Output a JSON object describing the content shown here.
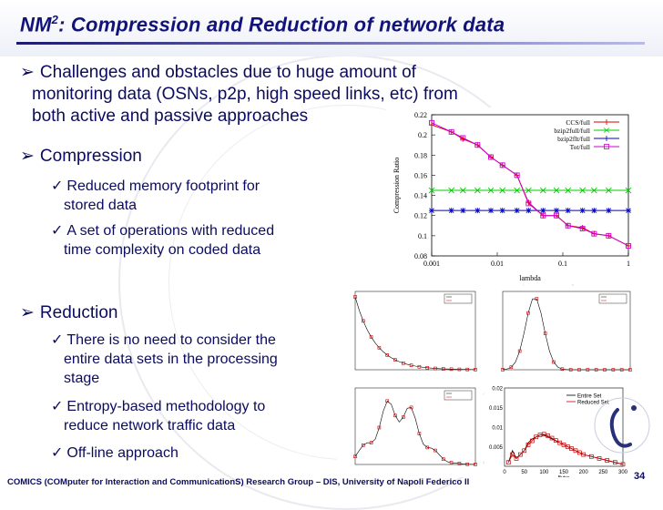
{
  "title": {
    "main": "NM",
    "sup": "2",
    "rest": ": Compression and Reduction of network data"
  },
  "challenges": {
    "line1": "Challenges and obstacles due to huge amount of",
    "line2": "monitoring data (OSNs, p2p, high speed links, etc) from",
    "line3": "both active and passive approaches"
  },
  "compression": {
    "heading": "Compression",
    "item1_line1": "Reduced memory footprint for",
    "item1_line2": "stored data",
    "item2_line1": "A set of operations with reduced",
    "item2_line2": "time complexity on coded data"
  },
  "reduction": {
    "heading": "Reduction",
    "item1_line1": "There is no need to consider the",
    "item1_line2": "entire data sets in the processing",
    "item1_line3": "stage",
    "item2_line1": "Entropy-based methodology to",
    "item2_line2": "reduce network traffic data",
    "item3": "Off-line approach"
  },
  "footer": "COMICS (COMputer for Interaction and CommunicationS) Research Group – DIS, University of Napoli Federico II",
  "page_number": "34",
  "colors": {
    "title": "#12137a",
    "text": "#0b0b60",
    "ccs": "#d40000",
    "bzip2": "#00cc00",
    "bzip2flt": "#0000cc",
    "tot": "#cc00cc",
    "entire": "#000000",
    "reduced": "#cc0000"
  },
  "chart_data": [
    {
      "type": "line",
      "xlabel": "lambda",
      "ylabel": "Compression Ratio",
      "x_scale": "log",
      "xlim": [
        0.001,
        1
      ],
      "ylim": [
        0.08,
        0.22
      ],
      "x_ticks": [
        "0.001",
        "0.01",
        "0.1",
        "1"
      ],
      "y_ticks": [
        "0.08",
        "0.1",
        "0.12",
        "0.14",
        "0.16",
        "0.18",
        "0.2",
        "0.22"
      ],
      "legend_position": "top-right",
      "x": [
        0.001,
        0.002,
        0.003,
        0.005,
        0.008,
        0.012,
        0.02,
        0.03,
        0.05,
        0.08,
        0.12,
        0.2,
        0.3,
        0.5,
        1
      ],
      "series": [
        {
          "name": "CCS/full",
          "values": [
            0.21,
            0.203,
            0.196,
            0.19,
            0.178,
            0.17,
            0.16,
            0.133,
            0.12,
            0.12,
            0.11,
            0.108,
            0.102,
            0.1,
            0.09
          ]
        },
        {
          "name": "bzip2full/full",
          "values": [
            0.145,
            0.145,
            0.145,
            0.145,
            0.145,
            0.145,
            0.145,
            0.145,
            0.145,
            0.145,
            0.145,
            0.145,
            0.145,
            0.145,
            0.145
          ]
        },
        {
          "name": "bzip2flt/full",
          "values": [
            0.125,
            0.125,
            0.125,
            0.125,
            0.125,
            0.125,
            0.125,
            0.125,
            0.125,
            0.125,
            0.125,
            0.125,
            0.125,
            0.125,
            0.125
          ]
        },
        {
          "name": "Tot/full",
          "values": [
            0.212,
            0.203,
            0.197,
            0.19,
            0.178,
            0.17,
            0.16,
            0.132,
            0.12,
            0.12,
            0.11,
            0.107,
            0.102,
            0.1,
            0.09
          ]
        }
      ]
    },
    {
      "type": "line",
      "ylim": [
        0,
        0.02
      ],
      "xlim": [
        0,
        300
      ],
      "x_ticks": [
        "0",
        "50",
        "100",
        "150",
        "200",
        "250",
        "300"
      ],
      "y_ticks": [
        "0.005",
        "0.01",
        "0.015",
        "0.02"
      ],
      "xlabel": "Bytes",
      "legend_position": "top-right",
      "x": [
        10,
        20,
        30,
        40,
        50,
        60,
        70,
        80,
        90,
        100,
        110,
        120,
        130,
        140,
        150,
        160,
        170,
        180,
        190,
        200,
        220,
        240,
        260,
        280,
        300
      ],
      "series": [
        {
          "name": "Entire Set",
          "values": [
            0.001,
            0.004,
            0.002,
            0.003,
            0.004,
            0.006,
            0.007,
            0.0075,
            0.008,
            0.008,
            0.0075,
            0.007,
            0.0065,
            0.006,
            0.0055,
            0.005,
            0.0045,
            0.004,
            0.0035,
            0.003,
            0.0025,
            0.002,
            0.0015,
            0.001,
            0.0005
          ]
        },
        {
          "name": "Reduced Set",
          "values": [
            0.001,
            0.003,
            0.002,
            0.003,
            0.004,
            0.0055,
            0.0065,
            0.0075,
            0.008,
            0.0082,
            0.0078,
            0.0072,
            0.0066,
            0.006,
            0.0055,
            0.005,
            0.0045,
            0.004,
            0.0035,
            0.003,
            0.0025,
            0.002,
            0.0015,
            0.001,
            0.0005
          ]
        }
      ]
    }
  ]
}
